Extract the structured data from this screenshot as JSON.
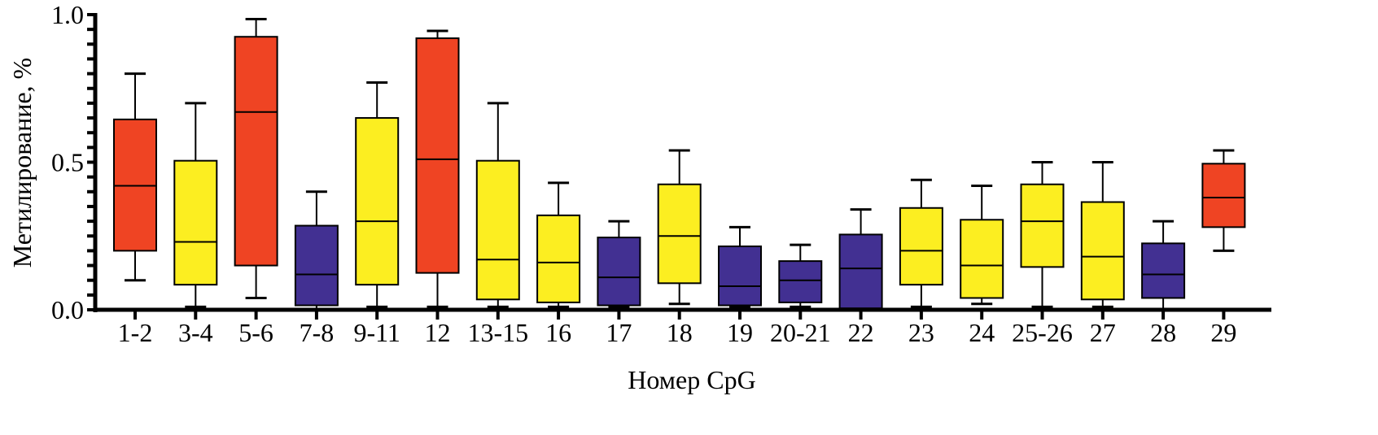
{
  "chart_data": {
    "type": "box",
    "xlabel": "Номер CpG",
    "ylabel": "Метилирование, %",
    "ylim": [
      0,
      1.0
    ],
    "yticks": [
      "0.0",
      "0.5",
      "1.0"
    ],
    "ytick_values": [
      0,
      0.5,
      1.0
    ],
    "minor_tick_step": 0.05,
    "grid": false,
    "legend": "none",
    "colors": {
      "red": "#EF4423",
      "yellow": "#FCEE21",
      "blue": "#423092"
    },
    "categories": [
      "1-2",
      "3-4",
      "5-6",
      "7-8",
      "9-11",
      "12",
      "13-15",
      "16",
      "17",
      "18",
      "19",
      "20-21",
      "22",
      "23",
      "24",
      "25-26",
      "27",
      "28",
      "29"
    ],
    "boxes": [
      {
        "min": 0.1,
        "q1": 0.2,
        "median": 0.42,
        "q3": 0.645,
        "max": 0.8,
        "color": "red"
      },
      {
        "min": 0.01,
        "q1": 0.085,
        "median": 0.23,
        "q3": 0.505,
        "max": 0.7,
        "color": "yellow"
      },
      {
        "min": 0.04,
        "q1": 0.15,
        "median": 0.67,
        "q3": 0.925,
        "max": 0.985,
        "color": "red"
      },
      {
        "min": 0.0,
        "q1": 0.015,
        "median": 0.12,
        "q3": 0.285,
        "max": 0.4,
        "color": "blue"
      },
      {
        "min": 0.01,
        "q1": 0.085,
        "median": 0.3,
        "q3": 0.65,
        "max": 0.77,
        "color": "yellow"
      },
      {
        "min": 0.01,
        "q1": 0.125,
        "median": 0.51,
        "q3": 0.92,
        "max": 0.945,
        "color": "red"
      },
      {
        "min": 0.01,
        "q1": 0.035,
        "median": 0.17,
        "q3": 0.505,
        "max": 0.7,
        "color": "yellow"
      },
      {
        "min": 0.01,
        "q1": 0.025,
        "median": 0.16,
        "q3": 0.32,
        "max": 0.43,
        "color": "yellow"
      },
      {
        "min": 0.01,
        "q1": 0.015,
        "median": 0.11,
        "q3": 0.245,
        "max": 0.3,
        "color": "blue"
      },
      {
        "min": 0.02,
        "q1": 0.09,
        "median": 0.25,
        "q3": 0.425,
        "max": 0.54,
        "color": "yellow"
      },
      {
        "min": 0.01,
        "q1": 0.015,
        "median": 0.08,
        "q3": 0.215,
        "max": 0.28,
        "color": "blue"
      },
      {
        "min": 0.01,
        "q1": 0.025,
        "median": 0.1,
        "q3": 0.165,
        "max": 0.22,
        "color": "blue"
      },
      {
        "min": 0.0,
        "q1": 0.005,
        "median": 0.14,
        "q3": 0.255,
        "max": 0.34,
        "color": "blue"
      },
      {
        "min": 0.01,
        "q1": 0.085,
        "median": 0.2,
        "q3": 0.345,
        "max": 0.44,
        "color": "yellow"
      },
      {
        "min": 0.02,
        "q1": 0.04,
        "median": 0.15,
        "q3": 0.305,
        "max": 0.42,
        "color": "yellow"
      },
      {
        "min": 0.01,
        "q1": 0.145,
        "median": 0.3,
        "q3": 0.425,
        "max": 0.5,
        "color": "yellow"
      },
      {
        "min": 0.01,
        "q1": 0.035,
        "median": 0.18,
        "q3": 0.365,
        "max": 0.5,
        "color": "yellow"
      },
      {
        "min": 0.0,
        "q1": 0.04,
        "median": 0.12,
        "q3": 0.225,
        "max": 0.3,
        "color": "blue"
      },
      {
        "min": 0.2,
        "q1": 0.28,
        "median": 0.38,
        "q3": 0.495,
        "max": 0.54,
        "color": "red"
      }
    ]
  }
}
